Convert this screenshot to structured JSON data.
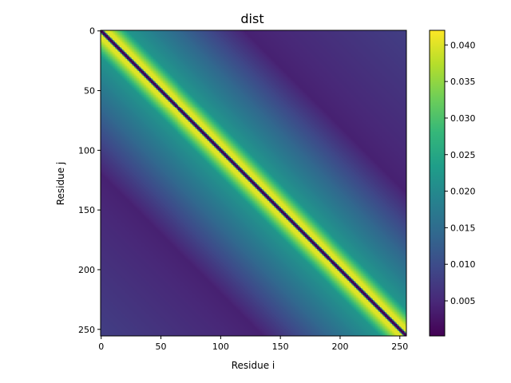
{
  "chart_data": {
    "type": "heatmap",
    "title": "dist",
    "xlabel": "Residue i",
    "ylabel": "Residue j",
    "n": 256,
    "xlim": [
      0,
      255
    ],
    "ylim": [
      255,
      0
    ],
    "xticks": [
      0,
      50,
      100,
      150,
      200,
      250
    ],
    "yticks": [
      0,
      50,
      100,
      150,
      200,
      250
    ],
    "colormap": "viridis",
    "colorbar": {
      "vmin": 0.0002,
      "vmax": 0.042,
      "ticks": [
        0.005,
        0.01,
        0.015,
        0.02,
        0.025,
        0.03,
        0.035,
        0.04
      ],
      "tick_labels": [
        "0.005",
        "0.010",
        "0.015",
        "0.020",
        "0.025",
        "0.030",
        "0.035",
        "0.040"
      ]
    },
    "description_profile": {
      "diagonal_value": 0.0002,
      "peak_offset": 5,
      "peak_value": 0.04,
      "ridge_offset": 22,
      "ridge_value": 0.022,
      "far_offset": 120,
      "far_value": 0.004
    },
    "colors": {
      "viridis": [
        "#440154",
        "#482878",
        "#3e4989",
        "#31688e",
        "#26828e",
        "#1f9e89",
        "#35b779",
        "#6ece58",
        "#b5de2b",
        "#fde725"
      ]
    }
  }
}
